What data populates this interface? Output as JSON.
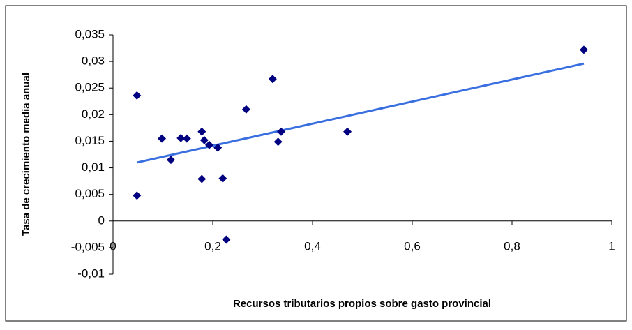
{
  "chart_data": {
    "type": "scatter",
    "x_label": "Recursos tributarios propios sobre gasto provincial",
    "y_label": "Tasa de crecimiento media anual",
    "color": "#000080",
    "x": [
      0.048,
      0.048,
      0.098,
      0.116,
      0.136,
      0.148,
      0.178,
      0.178,
      0.183,
      0.193,
      0.21,
      0.22,
      0.227,
      0.267,
      0.32,
      0.331,
      0.337,
      0.47,
      0.944
    ],
    "values": [
      0.0236,
      0.0048,
      0.0155,
      0.0115,
      0.0156,
      0.0155,
      0.0168,
      0.0079,
      0.0152,
      0.0143,
      0.0138,
      0.008,
      -0.0035,
      0.021,
      0.0267,
      0.0149,
      0.0168,
      0.0168,
      0.0322
    ],
    "trendline": {
      "color": "#3a6fe0",
      "x": [
        0.048,
        0.944
      ],
      "values": [
        0.011,
        0.0296
      ]
    },
    "xlim": [
      0,
      1
    ],
    "xticks": [
      0,
      {
        "value": 0.2,
        "label": "0,2"
      },
      {
        "value": 0.4,
        "label": "0,4"
      },
      {
        "value": 0.6,
        "label": "0,6"
      },
      {
        "value": 0.8,
        "label": "0,8"
      },
      1
    ],
    "ylim": [
      -0.01,
      0.035
    ],
    "yticks": [
      {
        "value": -0.01,
        "label": "-0,01"
      },
      {
        "value": -0.005,
        "label": "-0,005"
      },
      0,
      {
        "value": 0.005,
        "label": "0,005"
      },
      {
        "value": 0.01,
        "label": "0,01"
      },
      {
        "value": 0.015,
        "label": "0,015"
      },
      {
        "value": 0.02,
        "label": "0,02"
      },
      {
        "value": 0.025,
        "label": "0,025"
      },
      {
        "value": 0.03,
        "label": "0,03"
      },
      {
        "value": 0.035,
        "label": "0,035"
      }
    ]
  }
}
